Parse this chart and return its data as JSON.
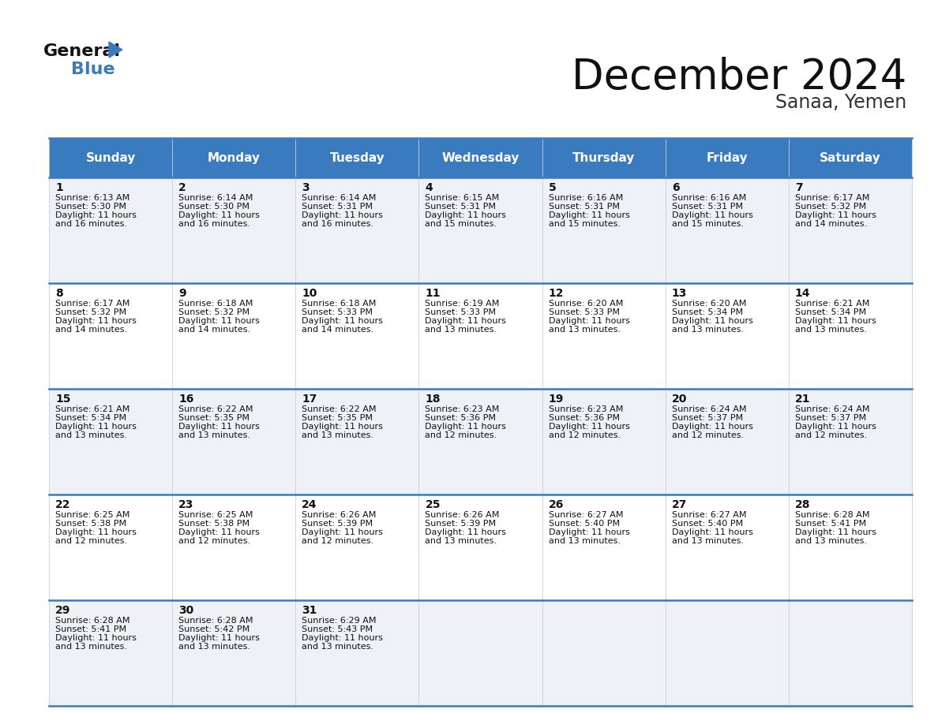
{
  "title": "December 2024",
  "subtitle": "Sanaa, Yemen",
  "header_bg_color": "#3a7abf",
  "header_text_color": "#ffffff",
  "day_names": [
    "Sunday",
    "Monday",
    "Tuesday",
    "Wednesday",
    "Thursday",
    "Friday",
    "Saturday"
  ],
  "cell_bg_light": "#eef2f7",
  "cell_bg_white": "#ffffff",
  "bg_color": "#ffffff",
  "grid_color": "#3a7abf",
  "day_num_color": "#111111",
  "text_color": "#111111",
  "logo_text_color": "#111111",
  "logo_blue_color": "#3a7abf",
  "subtitle_color": "#333333",
  "title_fontsize": 38,
  "subtitle_fontsize": 17,
  "header_fontsize": 11,
  "daynum_fontsize": 10,
  "cell_fontsize": 8,
  "calendar": [
    [
      {
        "day": 1,
        "sunrise": "6:13 AM",
        "sunset": "5:30 PM",
        "daylight": "11 hours and 16 minutes."
      },
      {
        "day": 2,
        "sunrise": "6:14 AM",
        "sunset": "5:30 PM",
        "daylight": "11 hours and 16 minutes."
      },
      {
        "day": 3,
        "sunrise": "6:14 AM",
        "sunset": "5:31 PM",
        "daylight": "11 hours and 16 minutes."
      },
      {
        "day": 4,
        "sunrise": "6:15 AM",
        "sunset": "5:31 PM",
        "daylight": "11 hours and 15 minutes."
      },
      {
        "day": 5,
        "sunrise": "6:16 AM",
        "sunset": "5:31 PM",
        "daylight": "11 hours and 15 minutes."
      },
      {
        "day": 6,
        "sunrise": "6:16 AM",
        "sunset": "5:31 PM",
        "daylight": "11 hours and 15 minutes."
      },
      {
        "day": 7,
        "sunrise": "6:17 AM",
        "sunset": "5:32 PM",
        "daylight": "11 hours and 14 minutes."
      }
    ],
    [
      {
        "day": 8,
        "sunrise": "6:17 AM",
        "sunset": "5:32 PM",
        "daylight": "11 hours and 14 minutes."
      },
      {
        "day": 9,
        "sunrise": "6:18 AM",
        "sunset": "5:32 PM",
        "daylight": "11 hours and 14 minutes."
      },
      {
        "day": 10,
        "sunrise": "6:18 AM",
        "sunset": "5:33 PM",
        "daylight": "11 hours and 14 minutes."
      },
      {
        "day": 11,
        "sunrise": "6:19 AM",
        "sunset": "5:33 PM",
        "daylight": "11 hours and 13 minutes."
      },
      {
        "day": 12,
        "sunrise": "6:20 AM",
        "sunset": "5:33 PM",
        "daylight": "11 hours and 13 minutes."
      },
      {
        "day": 13,
        "sunrise": "6:20 AM",
        "sunset": "5:34 PM",
        "daylight": "11 hours and 13 minutes."
      },
      {
        "day": 14,
        "sunrise": "6:21 AM",
        "sunset": "5:34 PM",
        "daylight": "11 hours and 13 minutes."
      }
    ],
    [
      {
        "day": 15,
        "sunrise": "6:21 AM",
        "sunset": "5:34 PM",
        "daylight": "11 hours and 13 minutes."
      },
      {
        "day": 16,
        "sunrise": "6:22 AM",
        "sunset": "5:35 PM",
        "daylight": "11 hours and 13 minutes."
      },
      {
        "day": 17,
        "sunrise": "6:22 AM",
        "sunset": "5:35 PM",
        "daylight": "11 hours and 13 minutes."
      },
      {
        "day": 18,
        "sunrise": "6:23 AM",
        "sunset": "5:36 PM",
        "daylight": "11 hours and 12 minutes."
      },
      {
        "day": 19,
        "sunrise": "6:23 AM",
        "sunset": "5:36 PM",
        "daylight": "11 hours and 12 minutes."
      },
      {
        "day": 20,
        "sunrise": "6:24 AM",
        "sunset": "5:37 PM",
        "daylight": "11 hours and 12 minutes."
      },
      {
        "day": 21,
        "sunrise": "6:24 AM",
        "sunset": "5:37 PM",
        "daylight": "11 hours and 12 minutes."
      }
    ],
    [
      {
        "day": 22,
        "sunrise": "6:25 AM",
        "sunset": "5:38 PM",
        "daylight": "11 hours and 12 minutes."
      },
      {
        "day": 23,
        "sunrise": "6:25 AM",
        "sunset": "5:38 PM",
        "daylight": "11 hours and 12 minutes."
      },
      {
        "day": 24,
        "sunrise": "6:26 AM",
        "sunset": "5:39 PM",
        "daylight": "11 hours and 12 minutes."
      },
      {
        "day": 25,
        "sunrise": "6:26 AM",
        "sunset": "5:39 PM",
        "daylight": "11 hours and 13 minutes."
      },
      {
        "day": 26,
        "sunrise": "6:27 AM",
        "sunset": "5:40 PM",
        "daylight": "11 hours and 13 minutes."
      },
      {
        "day": 27,
        "sunrise": "6:27 AM",
        "sunset": "5:40 PM",
        "daylight": "11 hours and 13 minutes."
      },
      {
        "day": 28,
        "sunrise": "6:28 AM",
        "sunset": "5:41 PM",
        "daylight": "11 hours and 13 minutes."
      }
    ],
    [
      {
        "day": 29,
        "sunrise": "6:28 AM",
        "sunset": "5:41 PM",
        "daylight": "11 hours and 13 minutes."
      },
      {
        "day": 30,
        "sunrise": "6:28 AM",
        "sunset": "5:42 PM",
        "daylight": "11 hours and 13 minutes."
      },
      {
        "day": 31,
        "sunrise": "6:29 AM",
        "sunset": "5:43 PM",
        "daylight": "11 hours and 13 minutes."
      },
      null,
      null,
      null,
      null
    ]
  ]
}
